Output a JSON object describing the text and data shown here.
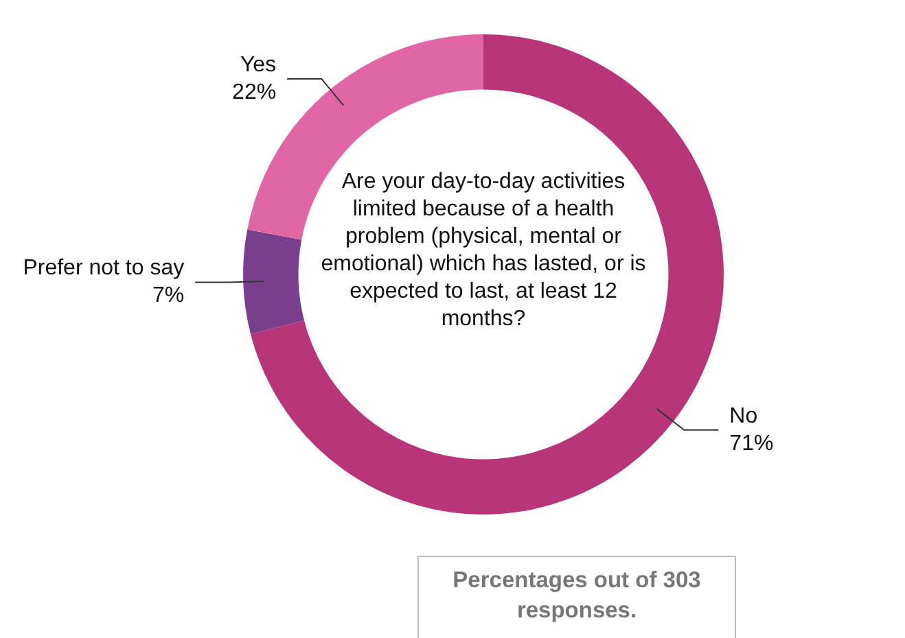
{
  "chart_data": {
    "type": "donut",
    "title": "Are your day-to-day activities limited because of a health problem (physical, mental or emotional) which has lasted, or is expected to last, at least 12 months?",
    "categories": [
      "No",
      "Prefer not to say",
      "Yes"
    ],
    "values": [
      71,
      7,
      22
    ],
    "value_labels": [
      "71%",
      "7%",
      "22%"
    ],
    "colors": [
      "#b93579",
      "#7a3f8c",
      "#e066a6"
    ],
    "legend": false,
    "annotations": [
      "Percentages out of 303 responses."
    ]
  }
}
